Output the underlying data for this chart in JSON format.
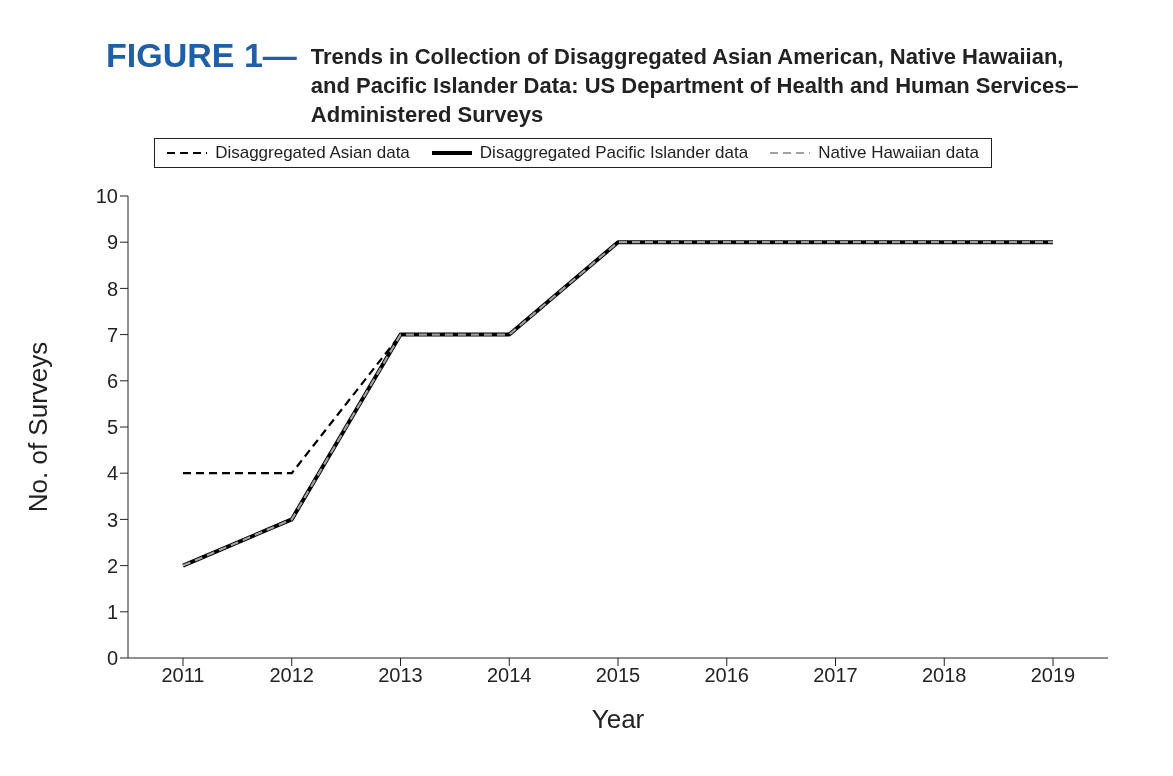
{
  "chart_data": {
    "type": "line",
    "title": "FIGURE 1—",
    "subtitle": "Trends in Collection of Disaggregated Asian American, Native Hawaiian, and Pacific Islander Data: US Department of Health and Human Services–Administered Surveys",
    "xlabel": "Year",
    "ylabel": "No. of Surveys",
    "categories": [
      "2011",
      "2012",
      "2013",
      "2014",
      "2015",
      "2016",
      "2017",
      "2018",
      "2019"
    ],
    "series": [
      {
        "name": "Disaggregated Asian data",
        "color": "#000000",
        "line_style": "dashed",
        "values": [
          4,
          4,
          7,
          7,
          9,
          9,
          9,
          9,
          9
        ]
      },
      {
        "name": "Disaggregated Pacific Islander data",
        "color": "#000000",
        "line_style": "solid",
        "values": [
          2,
          3,
          7,
          7,
          9,
          9,
          9,
          9,
          9
        ]
      },
      {
        "name": "Native Hawaiian data",
        "color": "#a0a0a0",
        "line_style": "dashed",
        "values": [
          2,
          3,
          7,
          7,
          9,
          9,
          9,
          9,
          9
        ]
      }
    ],
    "ylim": [
      0,
      10
    ],
    "yticks": [
      0,
      1,
      2,
      3,
      4,
      5,
      6,
      7,
      8,
      9,
      10
    ],
    "grid": false,
    "legend": "top",
    "marker": "none"
  }
}
